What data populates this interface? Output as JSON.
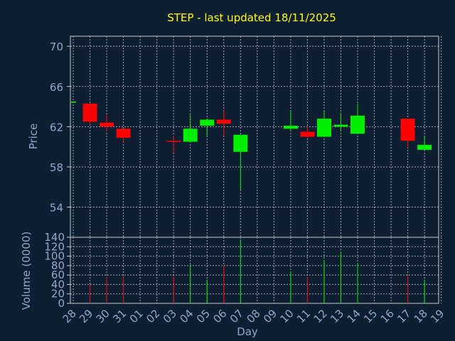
{
  "chart_data": {
    "type": "candlestick",
    "title": "STEP - last updated 18/11/2025",
    "xlabel": "Day",
    "ylabel": "Price",
    "volume_ylabel": "Volume (0000)",
    "x": [
      "28",
      "29",
      "30",
      "31",
      "01",
      "02",
      "03",
      "04",
      "05",
      "06",
      "07",
      "08",
      "09",
      "10",
      "11",
      "12",
      "13",
      "14",
      "15",
      "16",
      "17",
      "18",
      "19"
    ],
    "price_ylim": [
      51,
      71
    ],
    "price_ticks": [
      54,
      58,
      62,
      66,
      70
    ],
    "volume_ylim": [
      0,
      140
    ],
    "volume_ticks": [
      0,
      20,
      40,
      60,
      80,
      100,
      120,
      140
    ],
    "grid": true,
    "candles": [
      {
        "x": "28",
        "open": 64.5,
        "high": 64.5,
        "low": 64.5,
        "close": 64.5,
        "volume": 0
      },
      {
        "x": "29",
        "open": 64.3,
        "high": 64.3,
        "low": 62.2,
        "close": 62.5,
        "volume": 40
      },
      {
        "x": "30",
        "open": 62.4,
        "high": 63.2,
        "low": 61.5,
        "close": 62.0,
        "volume": 56
      },
      {
        "x": "31",
        "open": 61.8,
        "high": 61.8,
        "low": 60.5,
        "close": 60.9,
        "volume": 57
      },
      {
        "x": "03",
        "open": 60.6,
        "high": 61.1,
        "low": 59.4,
        "close": 60.5,
        "volume": 58
      },
      {
        "x": "04",
        "open": 60.5,
        "high": 63.2,
        "low": 60.5,
        "close": 61.8,
        "volume": 82
      },
      {
        "x": "05",
        "open": 62.1,
        "high": 62.8,
        "low": 61.0,
        "close": 62.7,
        "volume": 50
      },
      {
        "x": "06",
        "open": 62.7,
        "high": 63.6,
        "low": 61.1,
        "close": 62.3,
        "volume": 80
      },
      {
        "x": "07",
        "open": 59.5,
        "high": 61.2,
        "low": 55.7,
        "close": 61.2,
        "volume": 135
      },
      {
        "x": "10",
        "open": 61.8,
        "high": 63.5,
        "low": 61.6,
        "close": 62.1,
        "volume": 68
      },
      {
        "x": "11",
        "open": 61.5,
        "high": 62.0,
        "low": 60.9,
        "close": 61.0,
        "volume": 56
      },
      {
        "x": "12",
        "open": 61.0,
        "high": 63.5,
        "low": 61.0,
        "close": 62.8,
        "volume": 92
      },
      {
        "x": "13",
        "open": 62.0,
        "high": 63.4,
        "low": 61.5,
        "close": 62.2,
        "volume": 110
      },
      {
        "x": "14",
        "open": 61.3,
        "high": 64.3,
        "low": 61.3,
        "close": 63.1,
        "volume": 85
      },
      {
        "x": "17",
        "open": 62.8,
        "high": 62.8,
        "low": 59.9,
        "close": 60.6,
        "volume": 60
      },
      {
        "x": "18",
        "open": 59.7,
        "high": 61.0,
        "low": 59.7,
        "close": 60.2,
        "volume": 50
      }
    ],
    "colors": {
      "up": "#00ee00",
      "down": "#ff0000",
      "background": "#0f1f33",
      "plot_background": "#0f1f33",
      "title": "#ffff00",
      "text": "#8fa8c8",
      "grid": "#c8c8c8"
    }
  }
}
